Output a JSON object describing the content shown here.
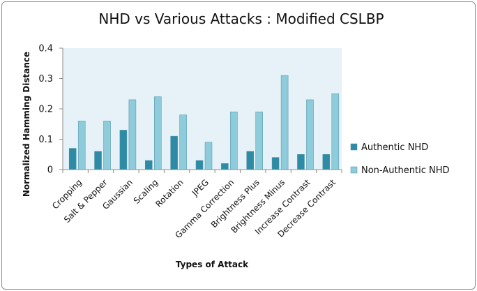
{
  "chart_data": {
    "type": "bar",
    "title": "NHD vs Various Attacks : Modified CSLBP",
    "xlabel": "Types of Attack",
    "ylabel": "Normalized Hamming Distance",
    "ylim": [
      0,
      0.4
    ],
    "yticks": [
      "0",
      "0.1",
      "0.2",
      "0.3",
      "0.4"
    ],
    "categories": [
      "Cropping",
      "Salt & Pepper",
      "Gaussian",
      "Scaling",
      "Rotation",
      "JPEG",
      "Gamma Correction",
      "Brightness Plus",
      "Brightness Minus",
      "Increase Contrast",
      "Decrease Contrast"
    ],
    "series": [
      {
        "name": "Authentic NHD",
        "color": "#2e8ba6",
        "values": [
          0.07,
          0.06,
          0.13,
          0.03,
          0.11,
          0.03,
          0.02,
          0.06,
          0.04,
          0.05,
          0.05
        ]
      },
      {
        "name": "Non-Authentic NHD",
        "color": "#8ecbdb",
        "values": [
          0.16,
          0.16,
          0.23,
          0.24,
          0.18,
          0.09,
          0.19,
          0.19,
          0.31,
          0.23,
          0.25
        ]
      }
    ],
    "grid": false,
    "plot_background": "#e6f2f7",
    "legend": "right"
  }
}
